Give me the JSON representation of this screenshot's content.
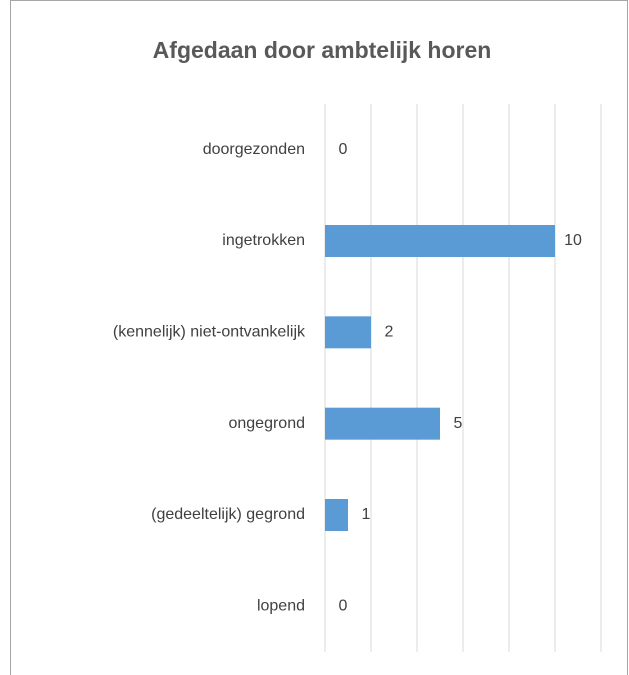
{
  "chart_data": {
    "type": "bar",
    "orientation": "horizontal",
    "title": "Afgedaan door ambtelijk horen",
    "categories": [
      "doorgezonden",
      "ingetrokken",
      "(kennelijk) niet-ontvankelijk",
      "ongegrond",
      "(gedeeltelijk) gegrond",
      "lopend"
    ],
    "values": [
      0,
      10,
      2,
      5,
      1,
      0
    ],
    "color": "#5b9bd5",
    "xlim": [
      0,
      12
    ],
    "xticks": [
      0,
      2,
      4,
      6,
      8,
      10,
      12
    ],
    "grid": true
  }
}
